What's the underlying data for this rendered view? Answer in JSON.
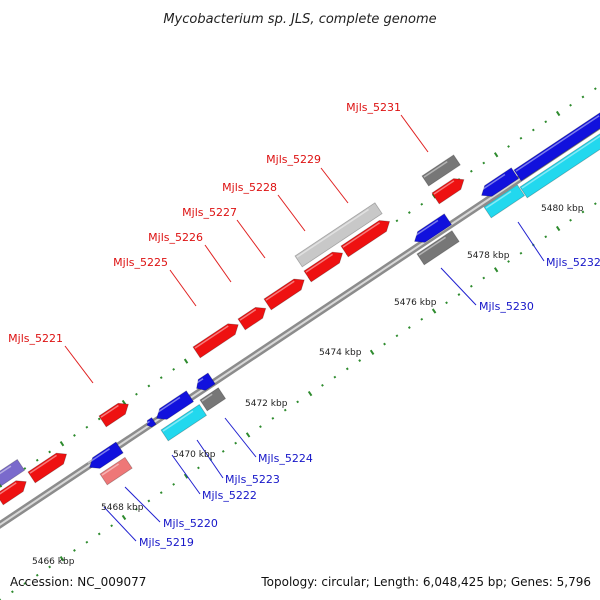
{
  "title": "Mycobacterium sp. JLS, complete genome",
  "footer": {
    "accession": "Accession: NC_009077",
    "stats": "Topology: circular; Length: 6,048,425 bp; Genes: 5,796"
  },
  "colors": {
    "forward": "#ee1111",
    "reverse": "#1111dd",
    "backbone": "#8a8a8a",
    "tick": "#2e8b2e",
    "cyan": "#22d8ee",
    "gray": "#777777",
    "lightgray": "#c8c8c8",
    "pink": "#ee7777",
    "purple": "#7a6acc"
  },
  "position_labels": [
    "5466 kbp",
    "5468 kbp",
    "5470 kbp",
    "5472 kbp",
    "5474 kbp",
    "5476 kbp",
    "5478 kbp",
    "5480 kbp"
  ],
  "gene_labels_forward": [
    "Mjls_5221",
    "Mjls_5225",
    "Mjls_5226",
    "Mjls_5227",
    "Mjls_5228",
    "Mjls_5229",
    "Mjls_5231"
  ],
  "gene_labels_reverse": [
    "Mjls_5219",
    "Mjls_5220",
    "Mjls_5222",
    "Mjls_5223",
    "Mjls_5224",
    "Mjls_5230",
    "Mjls_5232"
  ]
}
